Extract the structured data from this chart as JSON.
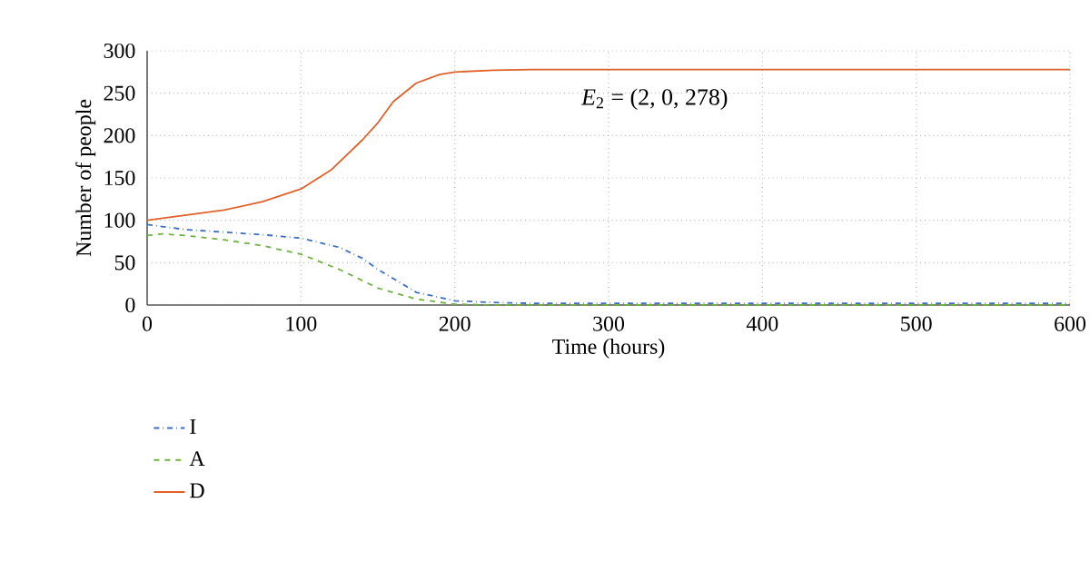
{
  "chart_data": {
    "type": "line",
    "xlabel": "Time (hours)",
    "ylabel": "Number of people",
    "xlim": [
      0,
      600
    ],
    "ylim": [
      0,
      300
    ],
    "xticks": [
      0,
      100,
      200,
      300,
      400,
      500,
      600
    ],
    "yticks": [
      0,
      50,
      100,
      150,
      200,
      250,
      300
    ],
    "grid": true,
    "legend": "bottom left",
    "marker": "none",
    "annotations": [
      "*E*$_{2}$ = (2, 0, 278)"
    ],
    "series": [
      {
        "name": "I",
        "color": "#3a6fc4",
        "line_style": "dashdot",
        "x": [
          0,
          25,
          50,
          75,
          100,
          125,
          140,
          150,
          175,
          200,
          225,
          250,
          600
        ],
        "values": [
          95,
          89,
          86,
          83,
          79,
          68,
          55,
          42,
          15,
          5,
          3,
          2,
          2
        ]
      },
      {
        "name": "A",
        "color": "#6db33f",
        "line_style": "dashed",
        "x": [
          0,
          10,
          25,
          50,
          75,
          100,
          125,
          150,
          175,
          200,
          225,
          600
        ],
        "values": [
          82,
          84,
          82,
          77,
          70,
          60,
          42,
          20,
          7,
          1,
          0,
          0
        ]
      },
      {
        "name": "D",
        "color": "#e0612a",
        "line_style": "solid",
        "x": [
          0,
          25,
          50,
          75,
          100,
          120,
          140,
          150,
          160,
          175,
          190,
          200,
          225,
          250,
          300,
          600
        ],
        "values": [
          100,
          106,
          112,
          122,
          137,
          160,
          195,
          215,
          240,
          262,
          272,
          275,
          277,
          278,
          278,
          278
        ]
      }
    ]
  }
}
